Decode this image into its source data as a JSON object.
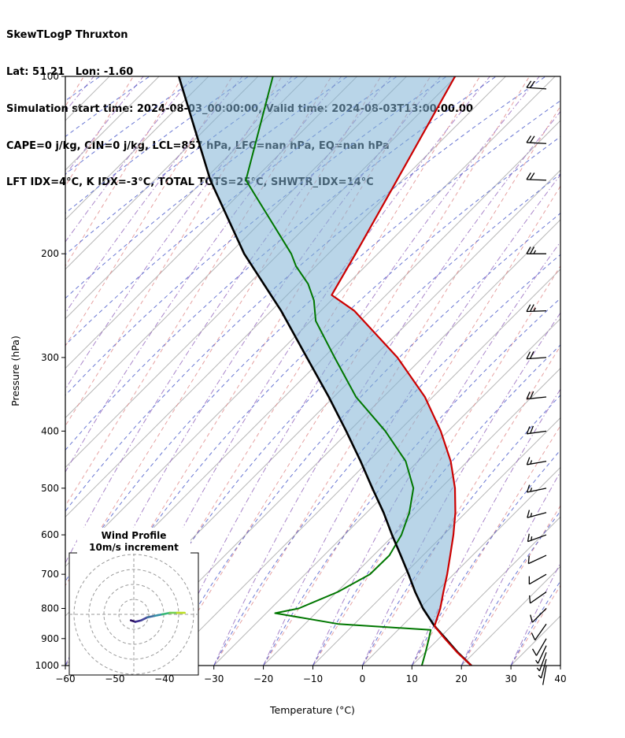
{
  "header": {
    "title": "SkewTLogP Thruxton",
    "location": "Lat: 51.21   Lon: -1.60",
    "times": "Simulation start time: 2024-08-03_00:00:00, Valid time: 2024-08-03T13:00:00.00",
    "stability1": "CAPE=0 j/kg, CIN=0 j/kg, LCL=857 hPa, LFC=nan hPa, EQ=nan hPa",
    "stability2": "LFT IDX=4°C, K IDX=-3°C, TOTAL TOTS=25°C, SHWTR_IDX=14°C"
  },
  "chart_data": {
    "type": "skewt-logp",
    "xlabel": "Temperature (°C)",
    "ylabel": "Pressure (hPa)",
    "xlim": [
      -60,
      40
    ],
    "pressure_range": [
      100,
      1000
    ],
    "x_ticks": [
      -60,
      -50,
      -40,
      -30,
      -20,
      -10,
      0,
      10,
      20,
      30,
      40
    ],
    "y_ticks": [
      100,
      200,
      300,
      400,
      500,
      600,
      700,
      800,
      900,
      1000
    ],
    "note": "profiles stored as skew-display temperature; isotherms slant 45deg up-right, pressure axis is log scale",
    "colors": {
      "temperature": "#cc0000",
      "dewpoint": "#007700",
      "parcel": "#000000",
      "cape_fill": "#7fb3d5",
      "isotherm": "#b0b0b0",
      "dry_adiabat": "#e08a8a",
      "mixing_line": "#5060cc",
      "moist_adiabat": "#9467bd",
      "barb": "#000000"
    },
    "profile_format": [
      "pressure_hPa",
      "temperature_C_skew_display"
    ],
    "temperature_profile": [
      [
        1000,
        22
      ],
      [
        950,
        16.5
      ],
      [
        900,
        11.2
      ],
      [
        857,
        6.6
      ],
      [
        800,
        4.2
      ],
      [
        750,
        1.5
      ],
      [
        700,
        -1.3
      ],
      [
        650,
        -4.5
      ],
      [
        600,
        -8
      ],
      [
        550,
        -12.1
      ],
      [
        500,
        -17.1
      ],
      [
        450,
        -23.4
      ],
      [
        400,
        -31.5
      ],
      [
        350,
        -41.6
      ],
      [
        300,
        -55.1
      ],
      [
        250,
        -73.2
      ],
      [
        235,
        -81
      ],
      [
        200,
        -84.5
      ],
      [
        150,
        -91
      ],
      [
        100,
        -100.2
      ]
    ],
    "dewpoint_profile": [
      [
        1000,
        12
      ],
      [
        950,
        10.1
      ],
      [
        900,
        8
      ],
      [
        870,
        6.6
      ],
      [
        850,
        -13.3
      ],
      [
        815,
        -28.2
      ],
      [
        800,
        -24.4
      ],
      [
        750,
        -19.8
      ],
      [
        700,
        -16.9
      ],
      [
        650,
        -16.8
      ],
      [
        600,
        -18.5
      ],
      [
        550,
        -21.4
      ],
      [
        500,
        -25.5
      ],
      [
        450,
        -32.5
      ],
      [
        400,
        -42.7
      ],
      [
        350,
        -55.5
      ],
      [
        300,
        -67.8
      ],
      [
        260,
        -79
      ],
      [
        240,
        -83.5
      ],
      [
        225,
        -88
      ],
      [
        210,
        -94
      ],
      [
        200,
        -97.5
      ],
      [
        150,
        -121.5
      ],
      [
        100,
        -137
      ]
    ],
    "parcel_profile": [
      [
        1000,
        22
      ],
      [
        950,
        16.6
      ],
      [
        900,
        11.4
      ],
      [
        857,
        6.6
      ],
      [
        800,
        0.7
      ],
      [
        750,
        -4.2
      ],
      [
        700,
        -9.1
      ],
      [
        650,
        -14.5
      ],
      [
        600,
        -20.4
      ],
      [
        550,
        -26.6
      ],
      [
        500,
        -33.8
      ],
      [
        450,
        -41.6
      ],
      [
        400,
        -50.6
      ],
      [
        350,
        -61
      ],
      [
        300,
        -73.4
      ],
      [
        250,
        -88
      ],
      [
        200,
        -107
      ],
      [
        150,
        -128.7
      ],
      [
        100,
        -156
      ]
    ],
    "background": [
      {
        "name": "isotherms",
        "color": "#b0b0b0",
        "dash": "",
        "slope": 1,
        "curve": 0,
        "from": -180,
        "to": 40,
        "step": 10,
        "opacity": 0.9
      },
      {
        "name": "dry-adiabats",
        "color": "#e08a8a",
        "dash": "5 4",
        "slope": 0.62,
        "curve": 0,
        "from": -140,
        "to": 40,
        "step": 10,
        "opacity": 0.8
      },
      {
        "name": "moist-adiabats",
        "color": "#9467bd",
        "dash": "7 3 1.5 3",
        "slope": 0.45,
        "curve": 0.00025,
        "from": -150,
        "to": 30,
        "step": 10,
        "opacity": 0.8
      },
      {
        "name": "mixing-ratio-lines",
        "color": "#5060cc",
        "dash": "5 4",
        "slope": 0.52,
        "curve": 0.00062,
        "from": -180,
        "to": 40,
        "step": 10,
        "opacity": 0.85
      }
    ],
    "wind_barbs_format": [
      "pressure_hPa",
      "speed_ms",
      "dir_deg"
    ],
    "wind_barbs": [
      [
        1000,
        4,
        190
      ],
      [
        975,
        6,
        195
      ],
      [
        950,
        8,
        200
      ],
      [
        925,
        8,
        205
      ],
      [
        900,
        10,
        210
      ],
      [
        850,
        10,
        215
      ],
      [
        800,
        12,
        225
      ],
      [
        750,
        12,
        235
      ],
      [
        700,
        14,
        240
      ],
      [
        650,
        14,
        245
      ],
      [
        600,
        16,
        250
      ],
      [
        550,
        16,
        255
      ],
      [
        500,
        18,
        258
      ],
      [
        450,
        18,
        260
      ],
      [
        400,
        20,
        262
      ],
      [
        350,
        22,
        264
      ],
      [
        300,
        24,
        266
      ],
      [
        250,
        26,
        268
      ],
      [
        200,
        26,
        270
      ],
      [
        150,
        24,
        272
      ],
      [
        130,
        22,
        273
      ],
      [
        105,
        20,
        274
      ]
    ],
    "hodograph": {
      "title_line1": "Wind Profile",
      "title_line2": "10m/s increment",
      "ring_interval_ms": 10,
      "rings_ms": [
        10,
        20,
        30,
        40
      ],
      "trace_uv_ms": [
        [
          -2,
          -4
        ],
        [
          1,
          -5
        ],
        [
          5,
          -4
        ],
        [
          9,
          -2
        ],
        [
          14,
          -1
        ],
        [
          19,
          0
        ],
        [
          24,
          1
        ],
        [
          29,
          1
        ],
        [
          34,
          1
        ]
      ],
      "trace_colors": [
        "#2d1160",
        "#3c2d8f",
        "#45489b",
        "#3e6da0",
        "#348fa7",
        "#37b878",
        "#77d153",
        "#bddf26"
      ]
    }
  }
}
